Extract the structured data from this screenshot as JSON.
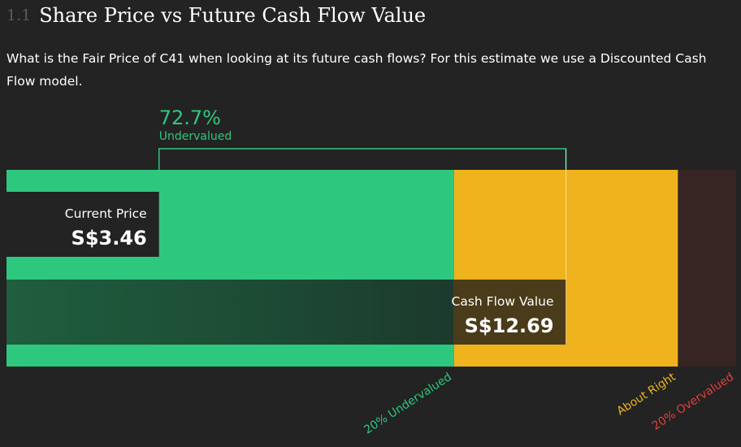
{
  "header": {
    "section_number": "1.1",
    "title": "Share Price vs Future Cash Flow Value"
  },
  "description": "What is the Fair Price of C41 when looking at its future cash flows? For this estimate we use a Discounted Cash Flow model.",
  "chart_data": {
    "type": "bar",
    "title": "Share Price vs Future Cash Flow Value",
    "currency": "S$",
    "current_price": {
      "label": "Current Price",
      "value": 3.46,
      "display": "S$3.46"
    },
    "cash_flow_value": {
      "label": "Cash Flow Value",
      "value": 12.69,
      "display": "S$12.69"
    },
    "discount": {
      "percent": 72.7,
      "display": "72.7%",
      "label": "Undervalued"
    },
    "axis_range": [
      0,
      16.55
    ],
    "zones": [
      {
        "name": "undervalued",
        "label": "20% Undervalued",
        "from": 0,
        "to": 10.15,
        "color": "#2ec77e",
        "label_color": "#2ec77e"
      },
      {
        "name": "about-right",
        "label": "About Right",
        "from": 10.15,
        "to": 15.23,
        "color": "#efb31e",
        "label_color": "#efb31e"
      },
      {
        "name": "overvalued",
        "label": "20% Overvalued",
        "from": 15.23,
        "to": 16.55,
        "color": "#372523",
        "label_color": "#e0413d"
      }
    ]
  },
  "colors": {
    "background": "#232323",
    "green": "#2ec77e",
    "yellow": "#efb31e",
    "overvalued_bg": "#372523",
    "red": "#e0413d"
  }
}
